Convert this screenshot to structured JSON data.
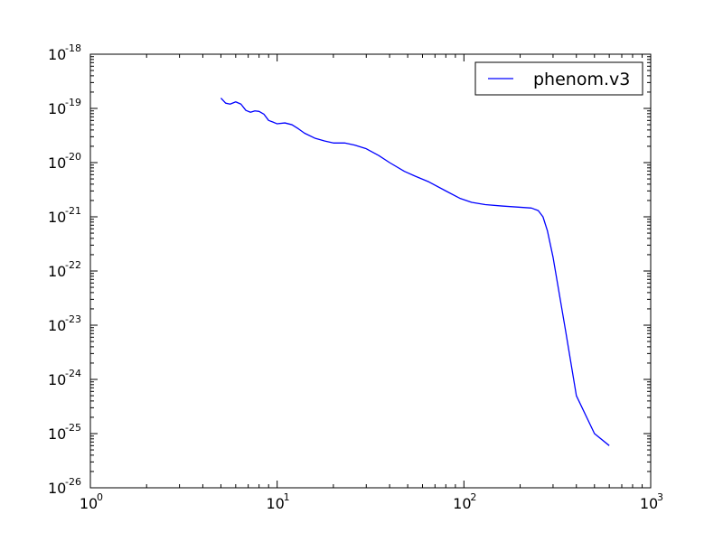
{
  "chart_data": {
    "type": "line",
    "title": "",
    "xlabel": "",
    "ylabel": "",
    "xscale": "log",
    "yscale": "log",
    "xlim": [
      1,
      1000
    ],
    "ylim": [
      1e-26,
      1e-18
    ],
    "grid": false,
    "legend_position": "top-right",
    "x_ticks": [
      {
        "base": "10",
        "exp": "0"
      },
      {
        "base": "10",
        "exp": "1"
      },
      {
        "base": "10",
        "exp": "2"
      },
      {
        "base": "10",
        "exp": "3"
      }
    ],
    "y_ticks": [
      {
        "base": "10",
        "exp": "-18"
      },
      {
        "base": "10",
        "exp": "-19"
      },
      {
        "base": "10",
        "exp": "-20"
      },
      {
        "base": "10",
        "exp": "-21"
      },
      {
        "base": "10",
        "exp": "-22"
      },
      {
        "base": "10",
        "exp": "-23"
      },
      {
        "base": "10",
        "exp": "-24"
      },
      {
        "base": "10",
        "exp": "-25"
      },
      {
        "base": "10",
        "exp": "-26"
      }
    ],
    "series": [
      {
        "name": "phenom.v3",
        "color": "#0000ff",
        "x": [
          5.0,
          5.3,
          5.6,
          6.0,
          6.4,
          6.8,
          7.2,
          7.6,
          8.0,
          8.5,
          9.0,
          9.5,
          10.0,
          11.0,
          12.0,
          13.0,
          14.0,
          16.0,
          18.0,
          20.0,
          23.0,
          26.0,
          30.0,
          35.0,
          40.0,
          48.0,
          55.0,
          65.0,
          80.0,
          95.0,
          110.0,
          130.0,
          160.0,
          200.0,
          230.0,
          250.0,
          265.0,
          280.0,
          300.0,
          350.0,
          400.0,
          500.0,
          600.0
        ],
        "y": [
          1.55e-19,
          1.25e-19,
          1.2e-19,
          1.32e-19,
          1.2e-19,
          9.2e-20,
          8.5e-20,
          9e-20,
          8.8e-20,
          7.8e-20,
          6e-20,
          5.6e-20,
          5.2e-20,
          5.4e-20,
          5e-20,
          4.2e-20,
          3.5e-20,
          2.8e-20,
          2.5e-20,
          2.3e-20,
          2.3e-20,
          2.1e-20,
          1.8e-20,
          1.35e-20,
          1e-20,
          6.9e-21,
          5.6e-21,
          4.4e-21,
          3e-21,
          2.2e-21,
          1.85e-21,
          1.68e-21,
          1.58e-21,
          1.5e-21,
          1.45e-21,
          1.3e-21,
          1e-21,
          5.5e-22,
          1.8e-22,
          8e-24,
          5e-25,
          1e-25,
          6e-26
        ]
      }
    ]
  }
}
